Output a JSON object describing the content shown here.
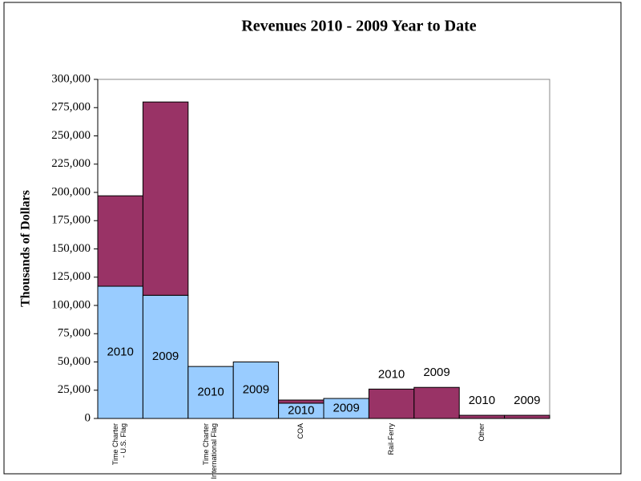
{
  "chart_data": {
    "type": "bar",
    "stacked": true,
    "title": "Revenues 2010 - 2009 Year to Date",
    "y_label": "Thousands of Dollars",
    "categories": [
      "Time Charter - U.S. Flag",
      null,
      "Time Charter - International Flag",
      null,
      "COA",
      null,
      "Rail-Ferry",
      null,
      "Other",
      null
    ],
    "bar_labels": [
      "2010",
      "2009",
      "2010",
      "2009",
      "2010",
      "2009",
      "2010",
      "2009",
      "2010",
      "2009"
    ],
    "series": [
      {
        "color": "#99ccff",
        "values": [
          117000,
          109000,
          46000,
          50000,
          13500,
          17700,
          0,
          0,
          0,
          0
        ]
      },
      {
        "color": "#993366",
        "values": [
          80000,
          171000,
          0,
          0,
          2800,
          0,
          26000,
          27500,
          2800,
          2800
        ]
      }
    ],
    "ylim": [
      0,
      300000
    ],
    "yticks": [
      0,
      {
        "value": 25000,
        "label": "25,000"
      },
      {
        "value": 50000,
        "label": "50,000"
      },
      {
        "value": 75000,
        "label": "75,000"
      },
      {
        "value": 100000,
        "label": "100,000"
      },
      {
        "value": 125000,
        "label": "125,000"
      },
      {
        "value": 150000,
        "label": "150,000"
      },
      {
        "value": 175000,
        "label": "175,000"
      },
      {
        "value": 200000,
        "label": "200,000"
      },
      {
        "value": 225000,
        "label": "225,000"
      },
      {
        "value": 250000,
        "label": "250,000"
      },
      {
        "value": 275000,
        "label": "275,000"
      },
      {
        "value": 300000,
        "label": "300,000"
      }
    ],
    "grid": false
  }
}
